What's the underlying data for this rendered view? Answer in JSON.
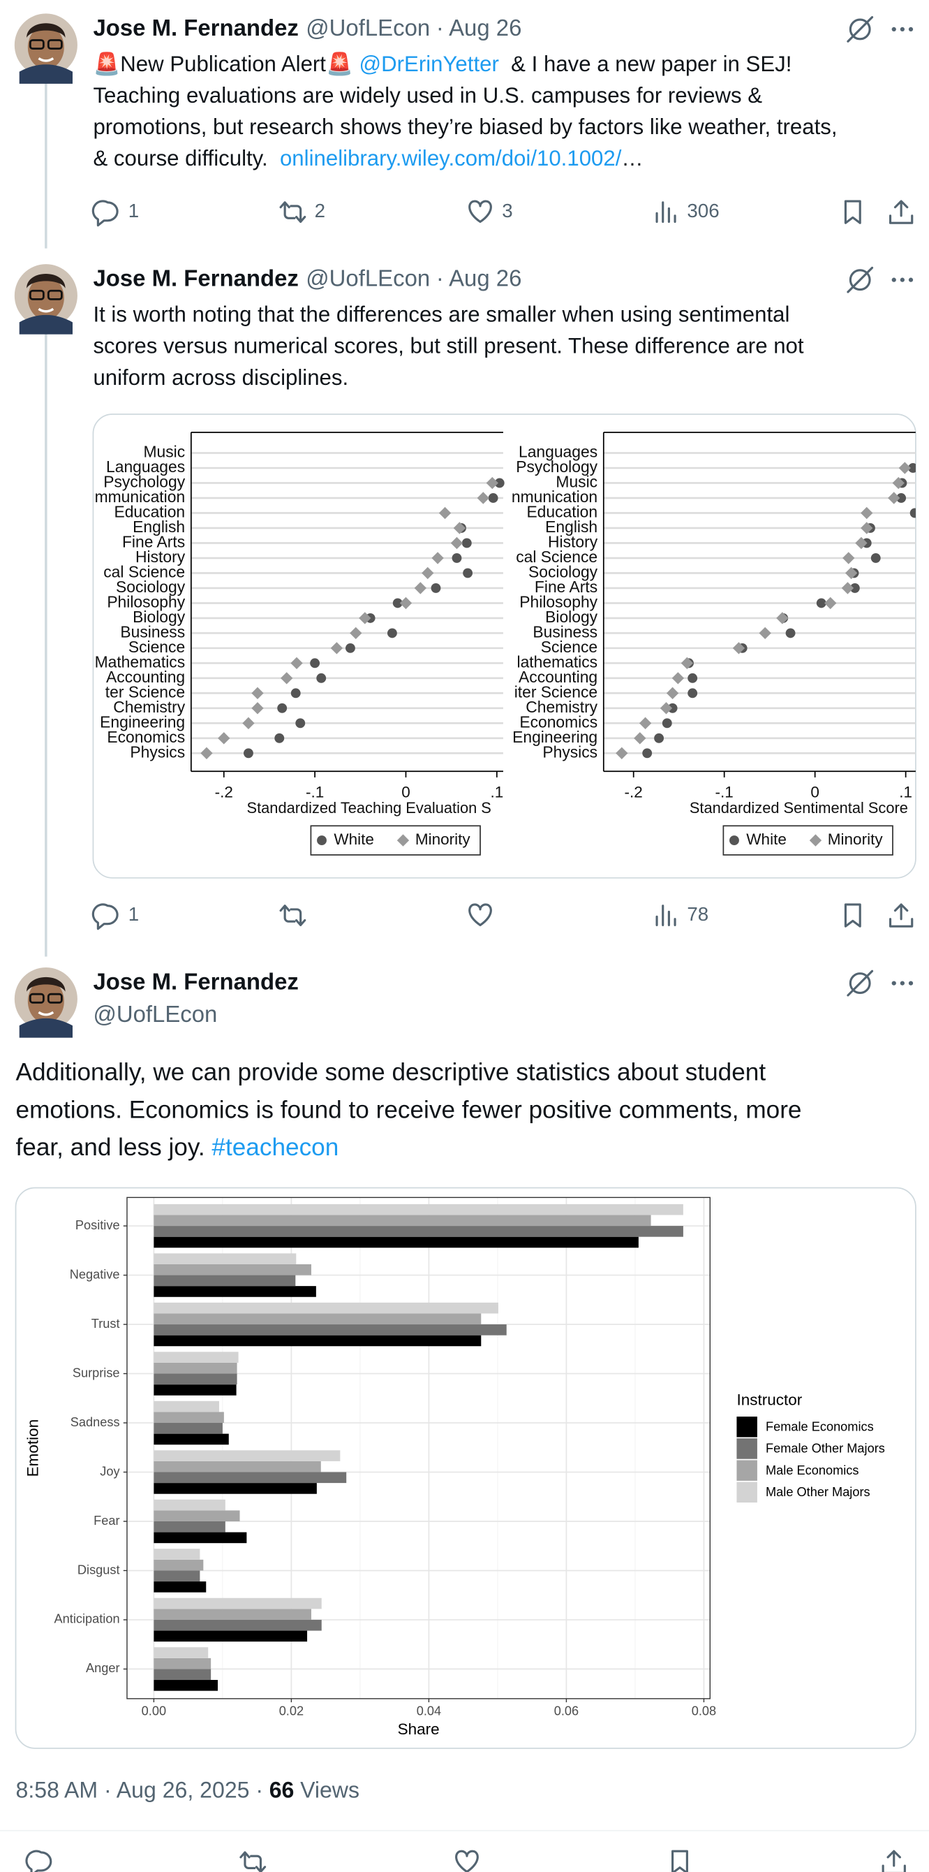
{
  "tweets": [
    {
      "name": "Jose M. Fernandez",
      "handle": "@UofLEcon",
      "date": "· Aug 26",
      "lines": [
        [
          {
            "text": "🚨New Publication Alert🚨 "
          },
          {
            "text": "@DrErinYetter",
            "link": true
          },
          {
            "text": "  & I have a new paper in SEJ!"
          }
        ],
        [
          {
            "text": "Teaching evaluations are widely used in U.S. campuses for reviews &"
          }
        ],
        [
          {
            "text": "promotions, but research shows they’re biased by factors like weather, treats,"
          }
        ],
        [
          {
            "text": "& course difficulty.  "
          },
          {
            "text": "onlinelibrary.wiley.com/doi/10.1002/",
            "link": true
          },
          {
            "text": "…"
          }
        ]
      ],
      "stats": {
        "replies": 1,
        "reposts": 2,
        "likes": 3,
        "views": 306
      }
    },
    {
      "name": "Jose M. Fernandez",
      "handle": "@UofLEcon",
      "date": "· Aug 26",
      "lines": [
        [
          {
            "text": "It is worth noting that the differences are smaller when using sentimental"
          }
        ],
        [
          {
            "text": "scores versus numerical scores, but still present. These difference are not"
          }
        ],
        [
          {
            "text": "uniform across disciplines."
          }
        ]
      ],
      "stats": {
        "replies": 1,
        "views": 78
      }
    },
    {
      "name": "Jose M. Fernandez",
      "handle": "@UofLEcon",
      "lines": [
        [
          {
            "text": "Additionally, we can provide some descriptive statistics about student"
          }
        ],
        [
          {
            "text": "emotions. Economics is found to receive fewer positive comments, more"
          }
        ],
        [
          {
            "text": "fear, and less joy. "
          },
          {
            "text": "#teachecon",
            "link": true
          }
        ]
      ],
      "timestamp": {
        "time": "8:58 AM · Aug 26, 2025 ·",
        "views": 66,
        "label": "Views"
      }
    }
  ],
  "chart_data": [
    {
      "type": "dot",
      "categories": [
        "Music",
        "Languages",
        "Psychology",
        "mmunication",
        "Education",
        "English",
        "Fine Arts",
        "History",
        "cal Science",
        "Sociology",
        "Philosophy",
        "Biology",
        "Business",
        "Science",
        "Mathematics",
        "Accounting",
        "ter Science",
        "Chemistry",
        "Engineering",
        "Economics",
        "Physics"
      ],
      "series": [
        {
          "name": "White",
          "color": "#555555",
          "marker": "circle",
          "values": [
            null,
            null,
            0.103,
            0.096,
            null,
            0.061,
            0.067,
            0.056,
            0.068,
            0.033,
            -0.009,
            -0.039,
            -0.015,
            -0.061,
            -0.1,
            -0.093,
            -0.121,
            -0.136,
            -0.116,
            -0.139,
            -0.173
          ]
        },
        {
          "name": "Minority",
          "color": "#999999",
          "marker": "diamond",
          "values": [
            null,
            null,
            0.095,
            0.085,
            0.043,
            0.059,
            0.056,
            0.035,
            0.024,
            0.016,
            0,
            -0.045,
            -0.055,
            -0.076,
            -0.12,
            -0.131,
            -0.163,
            -0.163,
            -0.173,
            -0.2,
            -0.219
          ]
        }
      ],
      "x_label": "Standardized Teaching Evaluation S",
      "xlim": [
        -0.236,
        0.107
      ],
      "xticks": [
        {
          "value": -0.2,
          "label": "-.2"
        },
        {
          "value": -0.1,
          "label": "-.1"
        },
        0,
        {
          "value": 0.1,
          "label": ".1"
        }
      ]
    },
    {
      "type": "dot",
      "categories": [
        "Languages",
        "Psychology",
        "Music",
        "nmunication",
        "Education",
        "English",
        "History",
        "cal Science",
        "Sociology",
        "Fine Arts",
        "Philosophy",
        "Biology",
        "Business",
        "Science",
        "lathematics",
        "Accounting",
        "iter Science",
        "Chemistry",
        "Economics",
        "Engineering",
        "Physics"
      ],
      "series": [
        {
          "name": "White",
          "color": "#555555",
          "marker": "circle",
          "values": [
            null,
            0.108,
            0.096,
            0.095,
            0.11,
            0.061,
            0.057,
            0.067,
            0.043,
            0.044,
            0.007,
            -0.035,
            -0.027,
            -0.08,
            -0.139,
            -0.135,
            -0.135,
            -0.157,
            -0.163,
            -0.172,
            -0.185
          ]
        },
        {
          "name": "Minority",
          "color": "#999999",
          "marker": "diamond",
          "values": [
            null,
            0.099,
            0.092,
            0.087,
            0.057,
            0.057,
            0.051,
            0.037,
            0.04,
            0.036,
            0.017,
            -0.036,
            -0.055,
            -0.084,
            -0.141,
            -0.151,
            -0.157,
            -0.164,
            -0.187,
            -0.193,
            -0.213
          ]
        }
      ],
      "x_label": "Standardized Sentimental Score",
      "xlim": [
        -0.233,
        0.111
      ],
      "xticks": [
        {
          "value": -0.2,
          "label": "-.2"
        },
        {
          "value": -0.1,
          "label": "-.1"
        },
        0,
        {
          "value": 0.1,
          "label": ".1"
        }
      ]
    },
    {
      "type": "bar",
      "orientation": "horizontal",
      "categories": [
        "Positive",
        "Negative",
        "Trust",
        "Surprise",
        "Sadness",
        "Joy",
        "Fear",
        "Disgust",
        "Anticipation",
        "Anger"
      ],
      "series": [
        {
          "name": "Female Economics",
          "color": "#000000",
          "values": [
            0.0705,
            0.0236,
            0.0476,
            0.012,
            0.0109,
            0.0237,
            0.0135,
            0.0076,
            0.0223,
            0.0093
          ]
        },
        {
          "name": "Female Other Majors",
          "color": "#737373",
          "values": [
            0.077,
            0.0206,
            0.0513,
            0.0121,
            0.01,
            0.028,
            0.0104,
            0.0067,
            0.0244,
            0.0083
          ]
        },
        {
          "name": "Male Economics",
          "color": "#a6a6a6",
          "values": [
            0.0723,
            0.0229,
            0.0476,
            0.0121,
            0.0102,
            0.0243,
            0.0125,
            0.0072,
            0.0229,
            0.0083
          ]
        },
        {
          "name": "Male Other Majors",
          "color": "#d3d3d3",
          "values": [
            0.077,
            0.0207,
            0.0501,
            0.0123,
            0.0095,
            0.0271,
            0.0104,
            0.0067,
            0.0244,
            0.0079
          ]
        }
      ],
      "x_label": "Share",
      "y_label": "Emotion",
      "legend_title": "Instructor",
      "legend": "right",
      "grid": true,
      "xlim": [
        -0.0039,
        0.0809
      ],
      "xticks": [
        {
          "value": 0,
          "label": "0.00"
        },
        {
          "value": 0.02,
          "label": "0.02"
        },
        {
          "value": 0.04,
          "label": "0.04"
        },
        {
          "value": 0.06,
          "label": "0.06"
        },
        {
          "value": 0.08,
          "label": "0.08"
        }
      ]
    }
  ]
}
